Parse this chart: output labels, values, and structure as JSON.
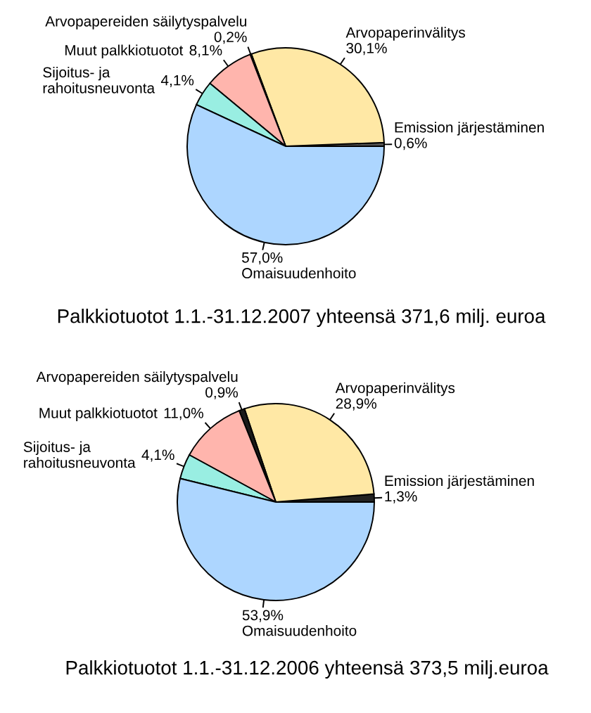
{
  "chart_data": [
    {
      "type": "pie",
      "title": "Palkkiotuotot 1.1.-31.12.2007 yhteensä 371,6 milj. euroa",
      "categories": [
        "Emission järjestäminen",
        "Arvopaperinvälitys",
        "Arvopapereiden säilytyspalvelu",
        "Muut palkkiotuotot",
        "Sijoitus- ja\nrahoitusneuvonta",
        "Omaisuudenhoito"
      ],
      "values": [
        0.6,
        30.1,
        0.2,
        8.1,
        4.1,
        57.0
      ],
      "value_labels": [
        "0,6%",
        "30,1%",
        "0,2%",
        "8,1%",
        "4,1%",
        "57,0%"
      ],
      "colors": [
        "#555555",
        "#ffe8a5",
        "#1a1a1a",
        "#ffb5ad",
        "#99eee2",
        "#add6ff"
      ]
    },
    {
      "type": "pie",
      "title": "Palkkiotuotot 1.1.-31.12.2006 yhteensä 373,5 milj.euroa",
      "categories": [
        "Emission järjestäminen",
        "Arvopaperinvälitys",
        "Arvopapereiden säilytyspalvelu",
        "Muut palkkiotuotot",
        "Sijoitus- ja\nrahoitusneuvonta",
        "Omaisuudenhoito"
      ],
      "values": [
        1.3,
        28.9,
        0.9,
        11.0,
        4.1,
        53.9
      ],
      "value_labels": [
        "1,3%",
        "28,9%",
        "0,9%",
        "11,0%",
        "4,1%",
        "53,9%"
      ],
      "colors": [
        "#222222",
        "#ffe8a5",
        "#1a1a1a",
        "#ffb5ad",
        "#99eee2",
        "#add6ff"
      ]
    }
  ]
}
